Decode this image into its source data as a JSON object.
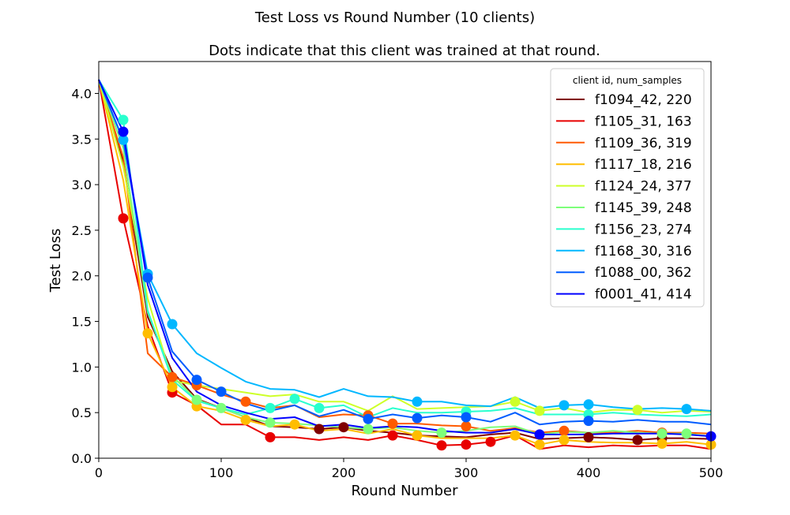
{
  "chart_data": {
    "type": "line",
    "suptitle": "Test Loss vs Round Number (10 clients)",
    "title": "Dots indicate that this client was trained at that round.",
    "xlabel": "Round Number",
    "ylabel": "Test Loss",
    "xlim": [
      0,
      500
    ],
    "ylim": [
      0,
      4.35
    ],
    "xticks": [
      0,
      100,
      200,
      300,
      400,
      500
    ],
    "yticks": [
      0.0,
      0.5,
      1.0,
      1.5,
      2.0,
      2.5,
      3.0,
      3.5,
      4.0
    ],
    "grid": false,
    "legend": {
      "title": "client id, num_samples",
      "placement": "top-right"
    },
    "x": [
      0,
      20,
      40,
      60,
      80,
      100,
      120,
      140,
      160,
      180,
      200,
      220,
      240,
      260,
      280,
      300,
      320,
      340,
      360,
      380,
      400,
      420,
      440,
      460,
      480,
      500
    ],
    "series": [
      {
        "name": "f1094_42, 220",
        "color": "#800000",
        "values": [
          4.15,
          3.25,
          1.55,
          0.95,
          0.65,
          0.55,
          0.45,
          0.35,
          0.34,
          0.32,
          0.34,
          0.3,
          0.28,
          0.25,
          0.24,
          0.23,
          0.26,
          0.28,
          0.21,
          0.22,
          0.23,
          0.22,
          0.2,
          0.22,
          0.22,
          0.21
        ],
        "trained": [
          180,
          200,
          400,
          440,
          460
        ]
      },
      {
        "name": "f1105_31, 163",
        "color": "#e80000",
        "values": [
          4.15,
          2.63,
          1.45,
          0.72,
          0.58,
          0.37,
          0.37,
          0.23,
          0.23,
          0.2,
          0.23,
          0.2,
          0.25,
          0.2,
          0.14,
          0.15,
          0.18,
          0.25,
          0.1,
          0.14,
          0.12,
          0.14,
          0.13,
          0.14,
          0.14,
          0.1
        ],
        "trained": [
          20,
          60,
          140,
          240,
          280,
          300,
          320
        ]
      },
      {
        "name": "f1109_36, 319",
        "color": "#ff5a00",
        "values": [
          4.15,
          3.3,
          1.15,
          0.89,
          0.8,
          0.7,
          0.62,
          0.55,
          0.58,
          0.45,
          0.48,
          0.47,
          0.38,
          0.38,
          0.36,
          0.35,
          0.3,
          0.33,
          0.28,
          0.3,
          0.28,
          0.28,
          0.3,
          0.28,
          0.28,
          0.27
        ],
        "trained": [
          60,
          80,
          120,
          220,
          240,
          300,
          380,
          460
        ]
      },
      {
        "name": "f1117_18, 216",
        "color": "#ffbd00",
        "values": [
          4.15,
          3.05,
          1.37,
          0.78,
          0.57,
          0.52,
          0.42,
          0.35,
          0.37,
          0.3,
          0.32,
          0.27,
          0.32,
          0.25,
          0.22,
          0.22,
          0.22,
          0.25,
          0.15,
          0.2,
          0.18,
          0.17,
          0.17,
          0.16,
          0.18,
          0.15
        ],
        "trained": [
          40,
          60,
          80,
          120,
          160,
          260,
          340,
          360,
          380,
          460,
          500
        ]
      },
      {
        "name": "f1124_24, 377",
        "color": "#ceff29",
        "values": [
          4.15,
          3.2,
          1.75,
          0.85,
          0.8,
          0.76,
          0.72,
          0.68,
          0.7,
          0.62,
          0.62,
          0.52,
          0.68,
          0.54,
          0.55,
          0.56,
          0.57,
          0.62,
          0.52,
          0.55,
          0.5,
          0.53,
          0.53,
          0.5,
          0.52,
          0.51
        ],
        "trained": [
          340,
          360,
          440
        ]
      },
      {
        "name": "f1145_39, 248",
        "color": "#7dff7a",
        "values": [
          4.15,
          3.4,
          1.6,
          0.9,
          0.64,
          0.55,
          0.45,
          0.39,
          0.38,
          0.36,
          0.34,
          0.32,
          0.34,
          0.3,
          0.28,
          0.3,
          0.34,
          0.35,
          0.26,
          0.29,
          0.28,
          0.3,
          0.28,
          0.27,
          0.27,
          0.24
        ],
        "trained": [
          80,
          100,
          140,
          220,
          280,
          460,
          480
        ]
      },
      {
        "name": "f1156_23, 274",
        "color": "#29ffce",
        "values": [
          4.15,
          3.71,
          1.62,
          0.86,
          0.63,
          0.55,
          0.48,
          0.55,
          0.65,
          0.55,
          0.58,
          0.45,
          0.55,
          0.5,
          0.5,
          0.51,
          0.52,
          0.55,
          0.48,
          0.48,
          0.48,
          0.5,
          0.48,
          0.47,
          0.46,
          0.48
        ],
        "trained": [
          20,
          140,
          160,
          180,
          300,
          400
        ]
      },
      {
        "name": "f1168_30, 316",
        "color": "#00b7ff",
        "values": [
          4.15,
          3.49,
          2.02,
          1.47,
          1.15,
          0.99,
          0.84,
          0.76,
          0.75,
          0.67,
          0.76,
          0.68,
          0.67,
          0.62,
          0.62,
          0.58,
          0.57,
          0.67,
          0.55,
          0.58,
          0.59,
          0.56,
          0.54,
          0.55,
          0.54,
          0.52
        ],
        "trained": [
          20,
          40,
          60,
          260,
          380,
          400,
          480
        ]
      },
      {
        "name": "f1088_00, 362",
        "color": "#005cff",
        "values": [
          4.15,
          3.48,
          1.98,
          1.17,
          0.86,
          0.73,
          0.6,
          0.52,
          0.58,
          0.46,
          0.53,
          0.43,
          0.48,
          0.44,
          0.47,
          0.45,
          0.4,
          0.5,
          0.37,
          0.4,
          0.41,
          0.4,
          0.42,
          0.4,
          0.4,
          0.37
        ],
        "trained": [
          40,
          80,
          100,
          220,
          260,
          300,
          400
        ]
      },
      {
        "name": "f0001_41, 414",
        "color": "#0000ff",
        "values": [
          4.15,
          3.58,
          1.9,
          1.1,
          0.73,
          0.58,
          0.5,
          0.43,
          0.45,
          0.35,
          0.37,
          0.33,
          0.35,
          0.34,
          0.3,
          0.28,
          0.28,
          0.32,
          0.26,
          0.26,
          0.26,
          0.27,
          0.27,
          0.27,
          0.26,
          0.24
        ],
        "trained": [
          20,
          360,
          500
        ]
      }
    ]
  }
}
